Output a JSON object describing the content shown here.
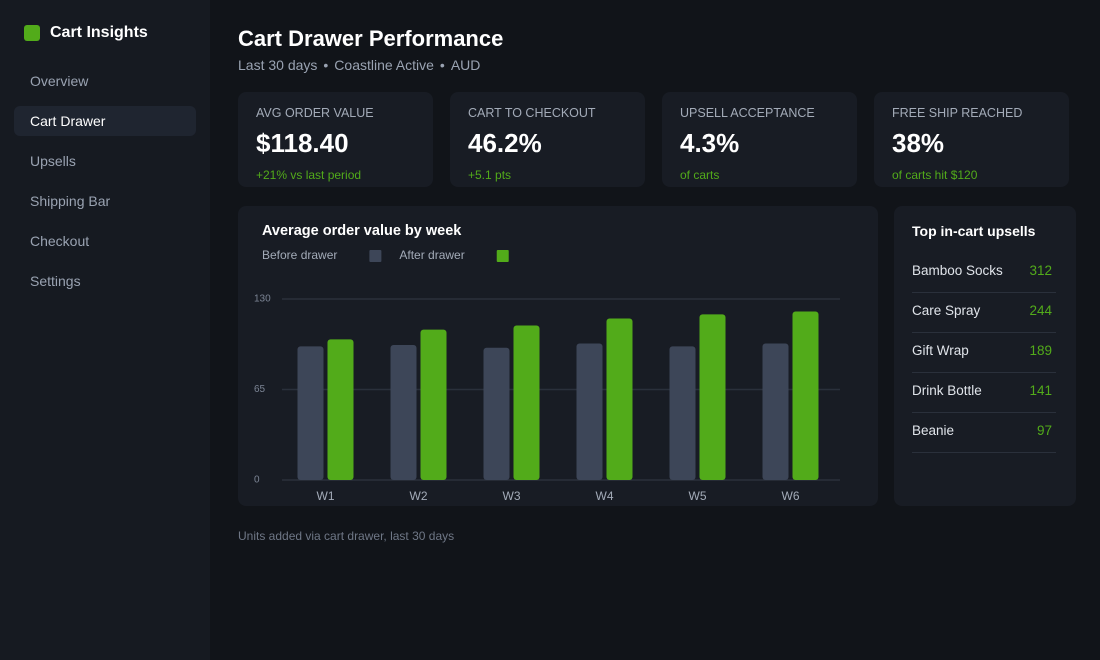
{
  "sidebar": {
    "brand": "Cart Insights",
    "nav": [
      "Overview",
      "Cart Drawer",
      "Upsells",
      "Shipping Bar",
      "Checkout",
      "Settings"
    ]
  },
  "header": {
    "title": "Cart Drawer Performance",
    "subtitle": [
      "Last 30 days",
      "Coastline Active",
      "AUD"
    ]
  },
  "kpis": [
    {
      "label": "AVG ORDER VALUE",
      "value": "$118.40",
      "note": "+21% vs last period"
    },
    {
      "label": "CART TO CHECKOUT",
      "value": "46.2%",
      "note": "+5.1 pts"
    },
    {
      "label": "UPSELL ACCEPTANCE",
      "value": "4.3%",
      "note": "of carts"
    },
    {
      "label": "FREE SHIP REACHED",
      "value": "38%",
      "note": "of carts hit $120"
    }
  ],
  "chart_data": {
    "type": "bar",
    "title": "Average order value by week",
    "categories": [
      "W1",
      "W2",
      "W3",
      "W4",
      "W5",
      "W6"
    ],
    "series": [
      {
        "name": "Before drawer",
        "color": "#3d4658",
        "values": [
          96,
          97,
          95,
          98,
          96,
          98
        ]
      },
      {
        "name": "After drawer",
        "color": "#52ab1a",
        "values": [
          101,
          108,
          111,
          116,
          119,
          121
        ]
      }
    ],
    "ylim": [
      0,
      130
    ],
    "yticks": [
      0,
      65,
      130
    ],
    "grid": true
  },
  "upsells": {
    "title": "Top in-cart upsells",
    "items": [
      {
        "name": "Bamboo Socks",
        "value": 312
      },
      {
        "name": "Care Spray",
        "value": 244
      },
      {
        "name": "Gift Wrap",
        "value": 189
      },
      {
        "name": "Drink Bottle",
        "value": 141
      },
      {
        "name": "Beanie",
        "value": 97
      }
    ]
  },
  "footnote": "Units added via cart drawer, last 30 days"
}
